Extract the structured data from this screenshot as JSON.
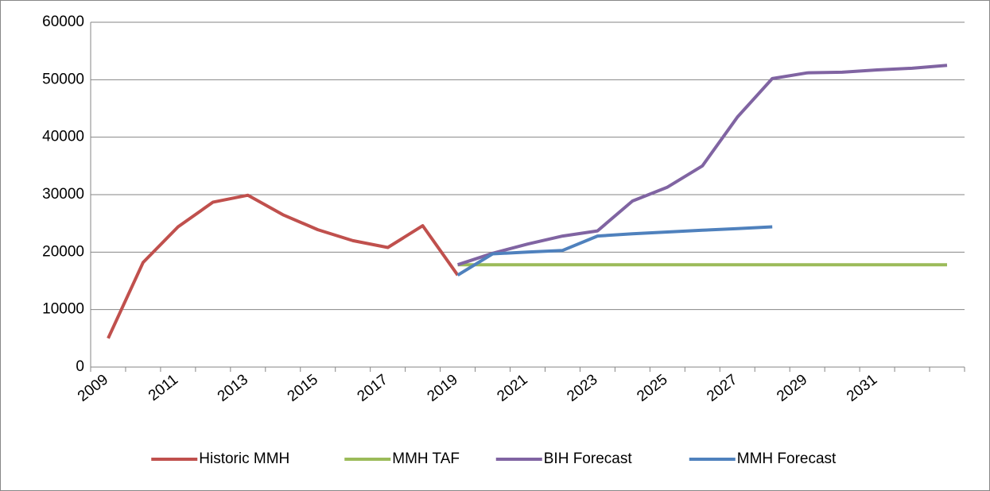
{
  "chart_data": {
    "type": "line",
    "categories": [
      "2009",
      null,
      "2011",
      null,
      "2013",
      null,
      "2015",
      null,
      "2017",
      null,
      "2019",
      null,
      "2021",
      null,
      "2023",
      null,
      "2025",
      null,
      "2027",
      null,
      "2029",
      null,
      "2031",
      null,
      null
    ],
    "series": [
      {
        "name": "Historic MMH",
        "color": "#c0504d",
        "values": [
          5000,
          18200,
          24400,
          28700,
          29900,
          26500,
          23900,
          22000,
          20800,
          24600,
          16000,
          null,
          null,
          null,
          null,
          null,
          null,
          null,
          null,
          null,
          null,
          null,
          null,
          null,
          null
        ]
      },
      {
        "name": "MMH TAF",
        "color": "#9bbb59",
        "values": [
          null,
          null,
          null,
          null,
          null,
          null,
          null,
          null,
          null,
          null,
          17800,
          17800,
          17800,
          17800,
          17800,
          17800,
          17800,
          17800,
          17800,
          17800,
          17800,
          17800,
          17800,
          17800,
          17800
        ]
      },
      {
        "name": "BIH Forecast",
        "color": "#8064a2",
        "values": [
          null,
          null,
          null,
          null,
          null,
          null,
          null,
          null,
          null,
          null,
          17800,
          19800,
          21400,
          22800,
          23700,
          28900,
          31300,
          35000,
          43500,
          50200,
          51200,
          51300,
          51700,
          52000,
          52500
        ]
      },
      {
        "name": "MMH Forecast",
        "color": "#4f81bd",
        "values": [
          null,
          null,
          null,
          null,
          null,
          null,
          null,
          null,
          null,
          null,
          16000,
          19700,
          20000,
          20300,
          22800,
          23200,
          23500,
          23800,
          24100,
          24400,
          null,
          null,
          null,
          null,
          null
        ]
      }
    ],
    "ylim": [
      0,
      60000
    ],
    "yticks": [
      0,
      10000,
      20000,
      30000,
      40000,
      50000,
      60000
    ],
    "grid": true,
    "legend": "bottom"
  }
}
